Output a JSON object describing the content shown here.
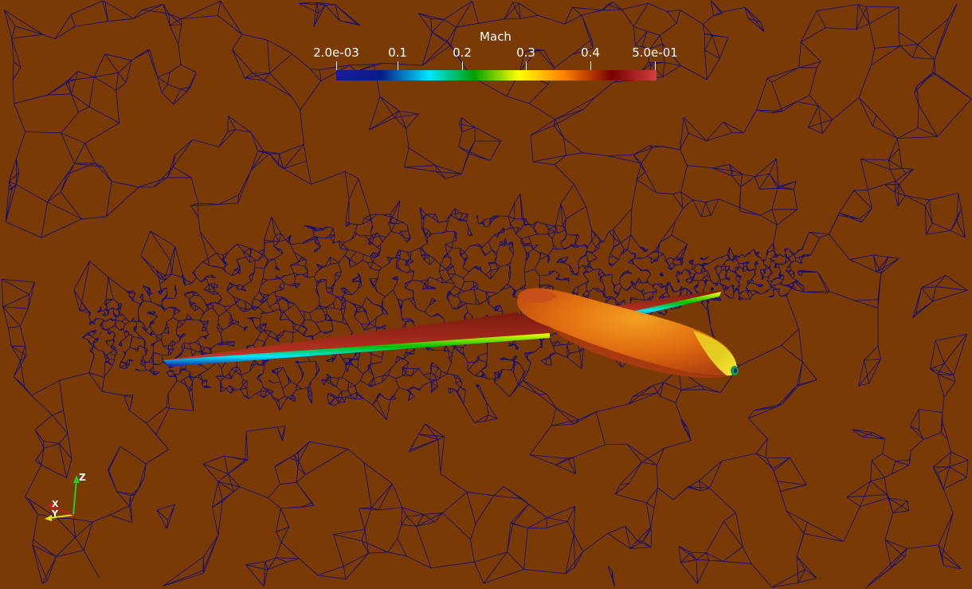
{
  "colorbar": {
    "title": "Mach",
    "labels": [
      "2.0e-03",
      "0.1",
      "0.2",
      "0.3",
      "0.4",
      "5.0e-01"
    ],
    "colors": [
      "#1a1a9c",
      "#0a1a88",
      "#00e5ff",
      "#00a000",
      "#ffff00",
      "#ff8000",
      "#7a0000",
      "#d04040"
    ]
  },
  "axes": {
    "z_label": "Z",
    "x_label": "X",
    "y_label": "Y"
  },
  "scene": {
    "background_color": "#7a3a05",
    "mesh_color": "#0b0b80",
    "body_color": "#e06a10"
  }
}
